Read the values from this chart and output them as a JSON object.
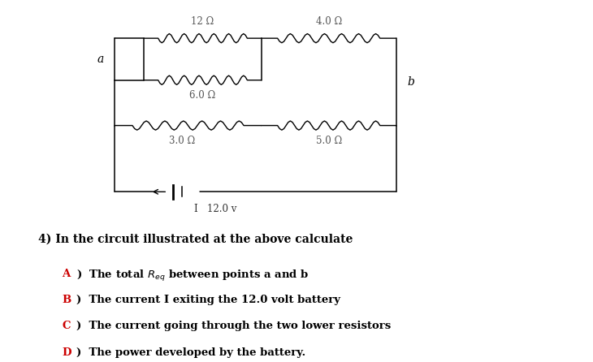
{
  "bg_color": "#ffffff",
  "title_text": "4) In the circuit illustrated at the above calculate",
  "items": [
    "A)  The total $R_{eq}$ between points a and b",
    "B)  The current I exiting the 12.0 volt battery",
    "C)  The current going through the two lower resistors",
    "D)  The power developed by the battery."
  ],
  "resistor_labels": {
    "R12": "12 Ω",
    "R6": "6.0 Ω",
    "R4": "4.0 Ω",
    "R3": "3.0 Ω",
    "R5": "5.0 Ω"
  },
  "battery_label": "I   12.0 v",
  "node_a": "a",
  "node_b": "b"
}
